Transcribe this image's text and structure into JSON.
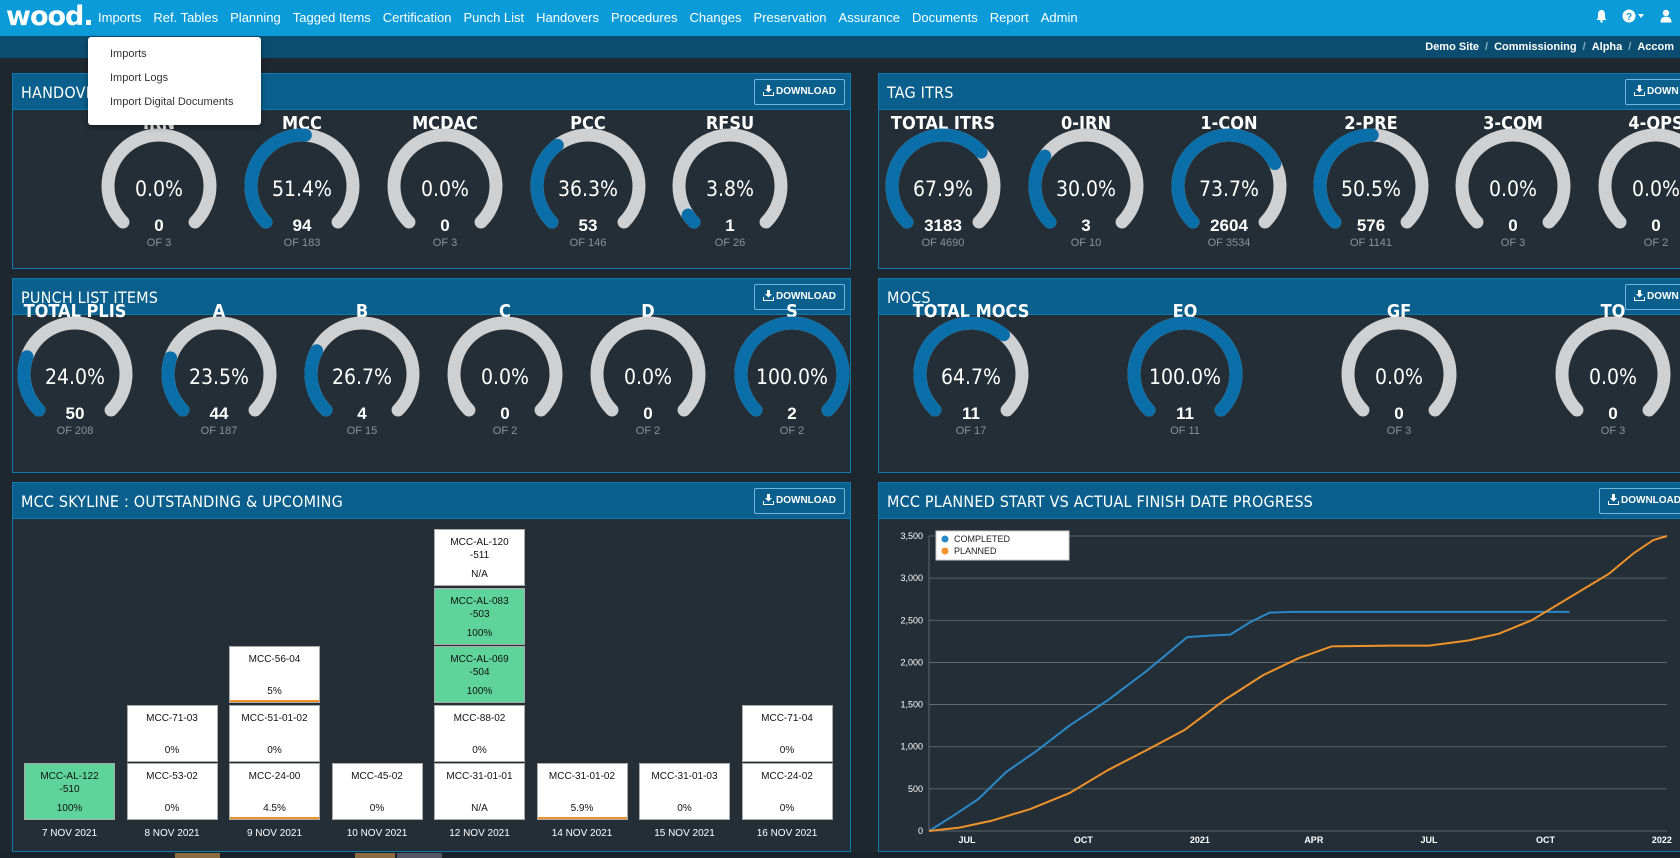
{
  "nav": {
    "logo": "wood.",
    "items": [
      "Imports",
      "Ref. Tables",
      "Planning",
      "Tagged Items",
      "Certification",
      "Punch List",
      "Handovers",
      "Procedures",
      "Changes",
      "Preservation",
      "Assurance",
      "Documents",
      "Report",
      "Admin"
    ]
  },
  "breadcrumb": [
    "Demo Site",
    "Commissioning",
    "Alpha",
    "Accom"
  ],
  "dropdown": [
    "Imports",
    "Import Logs",
    "Import Digital Documents"
  ],
  "download_label": "DOWNLOAD",
  "download_short_label": "DOWN",
  "colors": {
    "accent": "#0a9bd8",
    "gauge_fill": "#0a6ea8",
    "gauge_track": "#cfd0d1",
    "completed": "#2b88c8",
    "planned": "#f0922a",
    "green_cell": "#5fd49a"
  },
  "handovers": {
    "title": "HANDOVERS",
    "gauges": [
      {
        "label": "IRN",
        "pct": "0.0%",
        "value": 0.0,
        "count": "0",
        "of": "OF 3"
      },
      {
        "label": "MCC",
        "pct": "51.4%",
        "value": 51.4,
        "count": "94",
        "of": "OF 183"
      },
      {
        "label": "MCDAC",
        "pct": "0.0%",
        "value": 0.0,
        "count": "0",
        "of": "OF 3"
      },
      {
        "label": "PCC",
        "pct": "36.3%",
        "value": 36.3,
        "count": "53",
        "of": "OF 146"
      },
      {
        "label": "RFSU",
        "pct": "3.8%",
        "value": 3.8,
        "count": "1",
        "of": "OF 26"
      }
    ]
  },
  "tag_itrs": {
    "title": "TAG ITRS",
    "gauges": [
      {
        "label": "TOTAL ITRS",
        "pct": "67.9%",
        "value": 67.9,
        "count": "3183",
        "of": "OF 4690"
      },
      {
        "label": "0-IRN",
        "pct": "30.0%",
        "value": 30.0,
        "count": "3",
        "of": "OF 10"
      },
      {
        "label": "1-CON",
        "pct": "73.7%",
        "value": 73.7,
        "count": "2604",
        "of": "OF 3534"
      },
      {
        "label": "2-PRE",
        "pct": "50.5%",
        "value": 50.5,
        "count": "576",
        "of": "OF 1141"
      },
      {
        "label": "3-COM",
        "pct": "0.0%",
        "value": 0.0,
        "count": "0",
        "of": "OF 3"
      },
      {
        "label": "4-OPS",
        "pct": "0.0%",
        "value": 0.0,
        "count": "0",
        "of": "OF 2"
      }
    ]
  },
  "punch": {
    "title": "PUNCH LIST ITEMS",
    "gauges": [
      {
        "label": "TOTAL PLIS",
        "pct": "24.0%",
        "value": 24.0,
        "count": "50",
        "of": "OF 208"
      },
      {
        "label": "A",
        "pct": "23.5%",
        "value": 23.5,
        "count": "44",
        "of": "OF 187"
      },
      {
        "label": "B",
        "pct": "26.7%",
        "value": 26.7,
        "count": "4",
        "of": "OF 15"
      },
      {
        "label": "C",
        "pct": "0.0%",
        "value": 0.0,
        "count": "0",
        "of": "OF 2"
      },
      {
        "label": "D",
        "pct": "0.0%",
        "value": 0.0,
        "count": "0",
        "of": "OF 2"
      },
      {
        "label": "S",
        "pct": "100.0%",
        "value": 100.0,
        "count": "2",
        "of": "OF 2"
      }
    ]
  },
  "mocs": {
    "title": "MOCS",
    "gauges": [
      {
        "label": "TOTAL MOCS",
        "pct": "64.7%",
        "value": 64.7,
        "count": "11",
        "of": "OF 17"
      },
      {
        "label": "EQ",
        "pct": "100.0%",
        "value": 100.0,
        "count": "11",
        "of": "OF 11"
      },
      {
        "label": "GF",
        "pct": "0.0%",
        "value": 0.0,
        "count": "0",
        "of": "OF 3"
      },
      {
        "label": "TQ",
        "pct": "0.0%",
        "value": 0.0,
        "count": "0",
        "of": "OF 3"
      }
    ]
  },
  "skyline": {
    "title": "MCC SKYLINE : OUTSTANDING & UPCOMING",
    "columns": [
      {
        "date": "7 NOV 2021",
        "cells": [
          {
            "name": "MCC-AL-122 -510",
            "pct": "100%",
            "green": true,
            "bar": 0
          }
        ]
      },
      {
        "date": "8 NOV 2021",
        "cells": [
          {
            "name": "MCC-53-02",
            "pct": "0%",
            "green": false,
            "bar": 0
          },
          {
            "name": "MCC-71-03",
            "pct": "0%",
            "green": false,
            "bar": 0
          }
        ]
      },
      {
        "date": "9 NOV 2021",
        "cells": [
          {
            "name": "MCC-24-00",
            "pct": "4.5%",
            "green": false,
            "bar": 4.5
          },
          {
            "name": "MCC-51-01-02",
            "pct": "0%",
            "green": false,
            "bar": 0
          },
          {
            "name": "MCC-56-04",
            "pct": "5%",
            "green": false,
            "bar": 5
          }
        ]
      },
      {
        "date": "10 NOV 2021",
        "cells": [
          {
            "name": "MCC-45-02",
            "pct": "0%",
            "green": false,
            "bar": 0
          }
        ]
      },
      {
        "date": "12 NOV 2021",
        "cells": [
          {
            "name": "MCC-31-01-01",
            "pct": "N/A",
            "green": false,
            "bar": 0
          },
          {
            "name": "MCC-88-02",
            "pct": "0%",
            "green": false,
            "bar": 0
          },
          {
            "name": "MCC-AL-069 -504",
            "pct": "100%",
            "green": true,
            "bar": 0
          },
          {
            "name": "MCC-AL-083 -503",
            "pct": "100%",
            "green": true,
            "bar": 0
          },
          {
            "name": "MCC-AL-120 -511",
            "pct": "N/A",
            "green": false,
            "bar": 0
          }
        ]
      },
      {
        "date": "14 NOV 2021",
        "cells": [
          {
            "name": "MCC-31-01-02",
            "pct": "5.9%",
            "green": false,
            "bar": 5.9
          }
        ]
      },
      {
        "date": "15 NOV 2021",
        "cells": [
          {
            "name": "MCC-31-01-03",
            "pct": "0%",
            "green": false,
            "bar": 0
          }
        ]
      },
      {
        "date": "16 NOV 2021",
        "cells": [
          {
            "name": "MCC-24-02",
            "pct": "0%",
            "green": false,
            "bar": 0
          },
          {
            "name": "MCC-71-04",
            "pct": "0%",
            "green": false,
            "bar": 0
          }
        ]
      }
    ]
  },
  "progress": {
    "title": "MCC PLANNED START VS ACTUAL FINISH DATE PROGRESS"
  },
  "chart_data": {
    "type": "line",
    "title": "",
    "xlabel": "",
    "ylabel": "",
    "ylim": [
      0,
      3500
    ],
    "yticks": [
      "0",
      "500",
      "1,000",
      "1,500",
      "2,000",
      "2,500",
      "3,000",
      "3,500"
    ],
    "ytick_values": [
      0,
      500,
      1000,
      1500,
      2000,
      2500,
      3000,
      3500
    ],
    "xticks": [
      "JUL",
      "OCT",
      "2021",
      "APR",
      "JUL",
      "OCT",
      "2022"
    ],
    "xtick_values": [
      "2020-07-01",
      "2020-10-01",
      "2021-01-01",
      "2021-04-01",
      "2021-07-01",
      "2021-10-01",
      "2022-01-01"
    ],
    "xlim": [
      "2020-06-01",
      "2022-01-05"
    ],
    "legend_position": "top-left",
    "grid": true,
    "series": [
      {
        "name": "COMPLETED",
        "color": "#2b88c8",
        "points": [
          [
            "2020-06-01",
            0
          ],
          [
            "2020-06-20",
            180
          ],
          [
            "2020-07-10",
            380
          ],
          [
            "2020-08-01",
            700
          ],
          [
            "2020-08-25",
            950
          ],
          [
            "2020-09-20",
            1250
          ],
          [
            "2020-10-20",
            1550
          ],
          [
            "2020-11-20",
            1900
          ],
          [
            "2020-12-10",
            2150
          ],
          [
            "2020-12-22",
            2300
          ],
          [
            "2021-01-10",
            2320
          ],
          [
            "2021-01-25",
            2330
          ],
          [
            "2021-02-10",
            2480
          ],
          [
            "2021-02-25",
            2590
          ],
          [
            "2021-03-15",
            2600
          ],
          [
            "2021-06-01",
            2600
          ],
          [
            "2021-10-20",
            2600
          ]
        ]
      },
      {
        "name": "PLANNED",
        "color": "#f0922a",
        "points": [
          [
            "2020-06-01",
            0
          ],
          [
            "2020-06-25",
            40
          ],
          [
            "2020-07-20",
            120
          ],
          [
            "2020-08-20",
            260
          ],
          [
            "2020-09-20",
            450
          ],
          [
            "2020-10-20",
            720
          ],
          [
            "2020-11-20",
            960
          ],
          [
            "2020-12-20",
            1200
          ],
          [
            "2021-01-20",
            1550
          ],
          [
            "2021-02-20",
            1850
          ],
          [
            "2021-03-20",
            2050
          ],
          [
            "2021-04-15",
            2190
          ],
          [
            "2021-06-01",
            2200
          ],
          [
            "2021-07-01",
            2200
          ],
          [
            "2021-08-01",
            2260
          ],
          [
            "2021-08-25",
            2340
          ],
          [
            "2021-09-20",
            2500
          ],
          [
            "2021-10-20",
            2770
          ],
          [
            "2021-11-20",
            3050
          ],
          [
            "2021-12-10",
            3300
          ],
          [
            "2021-12-25",
            3450
          ],
          [
            "2022-01-05",
            3500
          ]
        ]
      }
    ]
  }
}
